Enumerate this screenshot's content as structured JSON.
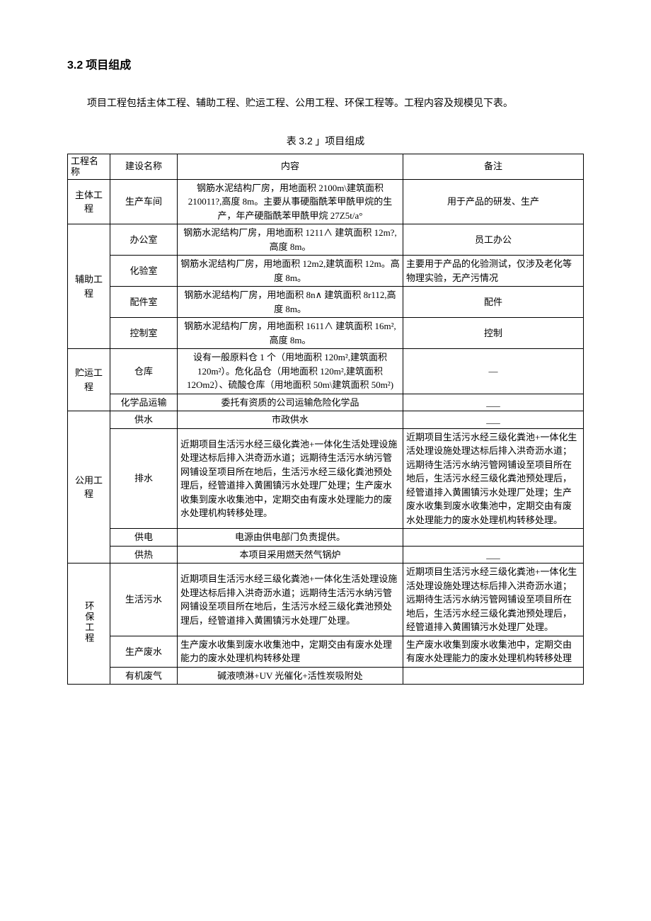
{
  "heading": {
    "number": "3.2",
    "title": "项目组成"
  },
  "intro": "项目工程包括主体工程、辅助工程、贮运工程、公用工程、环保工程等。工程内容及规模见下表。",
  "caption": {
    "prefix": "表",
    "number": "3.2",
    "suffix": "」项目组成"
  },
  "headers": {
    "category": "工程名称",
    "name": "建设名称",
    "content": "内容",
    "remark": "备注"
  },
  "groups": [
    {
      "category": "主体工程",
      "vertical": false,
      "rows": [
        {
          "name": "生产车间",
          "content": "钢筋水泥结构厂房，用地面积 2100m\\建筑面积 210011?,高度 8m。主要从事硬脂酰苯甲酰甲烷的生产，年产硬脂酰苯甲酰甲烷 27Z5t/a°",
          "content_align": "center",
          "remark": "用于产品的研发、生产",
          "remark_align": "center"
        }
      ]
    },
    {
      "category": "辅助工程",
      "vertical": false,
      "rows": [
        {
          "name": "办公室",
          "content": "钢筋水泥结构厂房，用地面积 1211∧ 建筑面积 12m?,高度 8m。",
          "content_align": "center",
          "remark": "员工办公",
          "remark_align": "center"
        },
        {
          "name": "化验室",
          "content": "钢筋水泥结构厂房，用地面积 12m2,建筑面积 12m。高度 8m。",
          "content_align": "center",
          "remark": "主要用于产品的化验测试，仅涉及老化等物理实验，无产污情况",
          "remark_align": "left"
        },
        {
          "name": "配件室",
          "content": "钢筋水泥结构厂房，用地面积 8n∧ 建筑面积 8r112,高度 8m。",
          "content_align": "center",
          "remark": "配件",
          "remark_align": "center"
        },
        {
          "name": "控制室",
          "content": "钢筋水泥结构厂房，用地面积 1611∧ 建筑面积 16m², 高度 8m。",
          "content_align": "center",
          "remark": "控制",
          "remark_align": "center"
        }
      ]
    },
    {
      "category": "贮运工程",
      "vertical": false,
      "rows": [
        {
          "name": "仓库",
          "content": "设有一般原料仓 1 个（用地面积 120m²,建筑面积 120m²）。危化品仓（用地面积 120m²,建筑面积 12Om2）、硫酸仓库（用地面积 50m\\建筑面积 50m²)",
          "content_align": "center",
          "remark": "—",
          "remark_align": "center"
        },
        {
          "name": "化学品运输",
          "content": "委托有资质的公司运输危险化学品",
          "content_align": "center",
          "remark": "___",
          "remark_align": "center"
        }
      ]
    },
    {
      "category": "公用工程",
      "vertical": false,
      "rows": [
        {
          "name": "供水",
          "content": "市政供水",
          "content_align": "center",
          "remark": "___",
          "remark_align": "center"
        },
        {
          "name": "排水",
          "content": "近期项目生活污水经三级化粪池+一体化生活处理设施处理达标后排入洪奇沥水道；远期待生活污水纳污管网铺设至项目所在地后，生活污水经三级化粪池预处理后，经管道排入黄圃镇污水处理厂处理；生产废水收集到废水收集池中，定期交由有废水处理能力的废水处理机构转移处理。",
          "content_align": "left",
          "remark": "近期项目生活污水经三级化粪池+一体化生活处理设施处理达标后排入洪奇沥水道；远期待生活污水纳污管网铺设至项目所在地后，生活污水经三级化粪池预处理后，经管道排入黄圃镇污水处理厂处理；生产废水收集到废水收集池中，定期交由有废水处理能力的废水处理机构转移处理。",
          "remark_align": "left"
        },
        {
          "name": "供电",
          "content": "电源由供电部门负责提供。",
          "content_align": "center",
          "remark": "",
          "remark_align": "center"
        },
        {
          "name": "供热",
          "content": "本项目采用燃天然气锅炉",
          "content_align": "center",
          "remark": "___",
          "remark_align": "center"
        }
      ]
    },
    {
      "category": "环保工程",
      "vertical": true,
      "rows": [
        {
          "name": "生活污水",
          "content": "近期项目生活污水经三级化粪池+一体化生活处理设施处理达标后排入洪奇沥水道；远期待生活污水纳污管网铺设至项目所在地后，生活污水经三级化粪池预处理后，经管道排入黄圃镇污水处理厂处理。",
          "content_align": "left",
          "remark": "近期项目生活污水经三级化粪池+一体化生活处理设施处理达标后排入洪奇沥水道；远期待生活污水纳污管网铺设至项目所在地后，生活污水经三级化粪池预处理后，经管道排入黄圃镇污水处理厂处理。",
          "remark_align": "left"
        },
        {
          "name": "生产废水",
          "content": "生产废水收集到废水收集池中，定期交由有废水处理能力的废水处理机构转移处理",
          "content_align": "left",
          "remark": "生产废水收集到废水收集池中，定期交由有废水处理能力的废水处理机构转移处理",
          "remark_align": "left"
        },
        {
          "name": "有机废气",
          "content": "碱液喷淋+UV 光催化+活性炭吸附处",
          "content_align": "center",
          "remark": "",
          "remark_align": "center"
        }
      ]
    }
  ]
}
